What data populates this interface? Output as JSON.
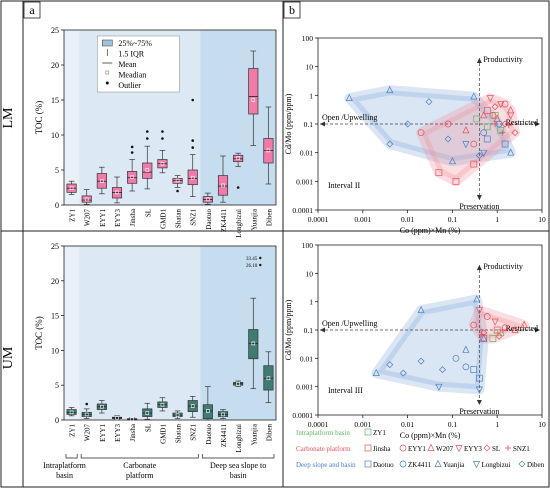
{
  "panels": {
    "a": "a",
    "b": "b"
  },
  "rows": {
    "lm": "LM",
    "um": "UM"
  },
  "chart_data": [
    {
      "id": "box-lm",
      "type": "box",
      "ylabel": "TOC (%)",
      "ylim": [
        0,
        25
      ],
      "yticks": [
        0,
        5,
        10,
        15,
        20,
        25
      ],
      "categories": [
        "ZY1",
        "W207",
        "EYY1",
        "EYY3",
        "Jinsha",
        "SL",
        "GMD1",
        "Shatan",
        "SNZ1",
        "Daotuo",
        "ZK4411",
        "Longbizui",
        "Yuanjia",
        "Diben"
      ],
      "legend": [
        "25%~75%",
        "1.5 IQR",
        "Mean",
        "Meadian",
        "Outlier"
      ],
      "boxes": [
        {
          "q1": 1.8,
          "median": 2.4,
          "q3": 3.0,
          "lo": 1.5,
          "hi": 3.4,
          "mean": 2.4,
          "outliers": []
        },
        {
          "q1": 0.4,
          "median": 0.7,
          "q3": 1.3,
          "lo": 0.1,
          "hi": 2.2,
          "mean": 0.8,
          "outliers": []
        },
        {
          "q1": 2.4,
          "median": 3.4,
          "q3": 4.5,
          "lo": 1.6,
          "hi": 5.4,
          "mean": 3.4,
          "outliers": []
        },
        {
          "q1": 1.0,
          "median": 1.8,
          "q3": 2.5,
          "lo": 0.3,
          "hi": 4.0,
          "mean": 1.8,
          "outliers": []
        },
        {
          "q1": 3.1,
          "median": 3.9,
          "q3": 4.8,
          "lo": 2.0,
          "hi": 6.5,
          "mean": 4.0,
          "outliers": [
            7.5,
            8.3
          ]
        },
        {
          "q1": 3.8,
          "median": 4.7,
          "q3": 6.0,
          "lo": 2.3,
          "hi": 8.4,
          "mean": 5.0,
          "outliers": [
            9.5,
            10.5
          ]
        },
        {
          "q1": 5.3,
          "median": 5.9,
          "q3": 6.5,
          "lo": 4.6,
          "hi": 7.8,
          "mean": 5.9,
          "outliers": [
            9.5,
            10.5
          ]
        },
        {
          "q1": 3.1,
          "median": 3.5,
          "q3": 3.8,
          "lo": 2.5,
          "hi": 4.2,
          "mean": 3.5,
          "outliers": [
            2.0
          ]
        },
        {
          "q1": 2.9,
          "median": 3.8,
          "q3": 5.0,
          "lo": 1.2,
          "hi": 7.2,
          "mean": 3.9,
          "outliers": [
            8.2,
            9.2,
            15.0
          ]
        },
        {
          "q1": 0.4,
          "median": 0.8,
          "q3": 1.2,
          "lo": 0.1,
          "hi": 1.7,
          "mean": 0.8,
          "outliers": []
        },
        {
          "q1": 1.4,
          "median": 2.7,
          "q3": 4.2,
          "lo": 0.4,
          "hi": 7.0,
          "mean": 2.8,
          "outliers": []
        },
        {
          "q1": 6.2,
          "median": 6.6,
          "q3": 7.1,
          "lo": 5.5,
          "hi": 7.4,
          "mean": 6.7,
          "outliers": [
            2.5
          ]
        },
        {
          "q1": 13.0,
          "median": 15.5,
          "q3": 19.5,
          "lo": 8.5,
          "hi": 22.0,
          "mean": 15.0,
          "outliers": []
        },
        {
          "q1": 6.0,
          "median": 7.8,
          "q3": 9.5,
          "lo": 3.0,
          "hi": 14.0,
          "mean": 7.8,
          "outliers": []
        }
      ]
    },
    {
      "id": "box-um",
      "type": "box",
      "ylabel": "TOC (%)",
      "ylim": [
        0,
        25
      ],
      "yticks": [
        0,
        5,
        10,
        15,
        20,
        25
      ],
      "categories": [
        "ZY1",
        "W207",
        "EYY1",
        "EYY3",
        "Jinsha",
        "SL",
        "GMD1",
        "Shatan",
        "SNZ1",
        "Daotuo",
        "ZK4411",
        "Longbizui",
        "Yuanjia",
        "Diben"
      ],
      "annotation": [
        "33.45",
        "26.10"
      ],
      "groups": [
        "Intraplatform\nbasin",
        "Carbonate\nplatform",
        "Deep sea slope to\nbasin"
      ],
      "boxes": [
        {
          "q1": 0.8,
          "median": 1.1,
          "q3": 1.5,
          "lo": 0.6,
          "hi": 1.8,
          "mean": 1.1,
          "outliers": []
        },
        {
          "q1": 0.5,
          "median": 0.8,
          "q3": 1.1,
          "lo": 0.2,
          "hi": 1.6,
          "mean": 0.8,
          "outliers": [
            2.3
          ]
        },
        {
          "q1": 1.5,
          "median": 1.9,
          "q3": 2.3,
          "lo": 1.0,
          "hi": 2.8,
          "mean": 1.9,
          "outliers": []
        },
        {
          "q1": 0.2,
          "median": 0.3,
          "q3": 0.4,
          "lo": 0.1,
          "hi": 0.6,
          "mean": 0.3,
          "outliers": []
        },
        {
          "q1": 0.0,
          "median": 0.1,
          "q3": 0.2,
          "lo": 0.0,
          "hi": 0.3,
          "mean": 0.1,
          "outliers": []
        },
        {
          "q1": 0.5,
          "median": 1.0,
          "q3": 1.6,
          "lo": 0.1,
          "hi": 2.4,
          "mean": 1.0,
          "outliers": []
        },
        {
          "q1": 1.8,
          "median": 2.2,
          "q3": 2.6,
          "lo": 1.3,
          "hi": 3.2,
          "mean": 2.2,
          "outliers": []
        },
        {
          "q1": 0.5,
          "median": 0.7,
          "q3": 1.0,
          "lo": 0.2,
          "hi": 1.3,
          "mean": 0.7,
          "outliers": []
        },
        {
          "q1": 1.2,
          "median": 2.0,
          "q3": 2.8,
          "lo": 0.4,
          "hi": 3.4,
          "mean": 2.0,
          "outliers": []
        },
        {
          "q1": 0.2,
          "median": 1.3,
          "q3": 2.2,
          "lo": 0.0,
          "hi": 4.8,
          "mean": 1.3,
          "outliers": []
        },
        {
          "q1": 0.5,
          "median": 0.8,
          "q3": 1.2,
          "lo": 0.2,
          "hi": 1.5,
          "mean": 0.8,
          "outliers": []
        },
        {
          "q1": 5.0,
          "median": 5.2,
          "q3": 5.4,
          "lo": 4.8,
          "hi": 5.6,
          "mean": 5.2,
          "outliers": []
        },
        {
          "q1": 8.8,
          "median": 11.0,
          "q3": 13.0,
          "lo": 4.5,
          "hi": 17.5,
          "mean": 11.0,
          "outliers": []
        },
        {
          "q1": 4.3,
          "median": 6.0,
          "q3": 7.8,
          "lo": 2.5,
          "hi": 9.8,
          "mean": 6.0,
          "outliers": []
        }
      ]
    },
    {
      "id": "scatter-lm",
      "type": "scatter",
      "xlabel": "Co (ppm)×Mn (%)",
      "ylabel": "Cd/Mo (ppm/ppm)",
      "xscale": "log",
      "yscale": "log",
      "xlim": [
        0.0001,
        10
      ],
      "ylim": [
        0.0001,
        100
      ],
      "xticks": [
        "0.0001",
        "0.001",
        "0.01",
        "0.1",
        "1",
        "10"
      ],
      "yticks": [
        "0.0001",
        "0.001",
        "0.01",
        "0.1",
        "1",
        "10",
        "100"
      ],
      "arrow_labels": [
        "Productivity",
        "Open /Upwelling",
        "Restricted",
        "Preservation"
      ],
      "interval": "Interval II",
      "threshold": {
        "x": 0.4,
        "y": 0.1
      },
      "series": [
        {
          "name": "ZY1",
          "color": "#5cb85c",
          "marker": "square",
          "points": [
            [
              0.35,
              0.15
            ],
            [
              0.6,
              0.08
            ],
            [
              0.9,
              0.2
            ],
            [
              1.2,
              0.06
            ]
          ]
        },
        {
          "name": "Jinsha",
          "color": "#e8505b",
          "marker": "square",
          "points": [
            [
              0.05,
              0.002
            ],
            [
              0.12,
              0.001
            ],
            [
              0.3,
              0.004
            ],
            [
              0.6,
              0.3
            ]
          ]
        },
        {
          "name": "EYY1",
          "color": "#e8505b",
          "marker": "circle",
          "points": [
            [
              0.02,
              0.05
            ],
            [
              0.08,
              0.1
            ],
            [
              0.3,
              0.02
            ],
            [
              0.8,
              0.2
            ],
            [
              1.5,
              0.5
            ]
          ]
        },
        {
          "name": "W207",
          "color": "#e8505b",
          "marker": "triangle",
          "points": [
            [
              0.2,
              0.06
            ],
            [
              0.5,
              0.2
            ],
            [
              1.0,
              0.15
            ],
            [
              2.0,
              0.3
            ]
          ]
        },
        {
          "name": "EYY3",
          "color": "#e8505b",
          "marker": "triangle-down",
          "points": [
            [
              0.7,
              0.8
            ],
            [
              1.2,
              0.5
            ],
            [
              2.0,
              0.2
            ]
          ]
        },
        {
          "name": "SL",
          "color": "#e8505b",
          "marker": "diamond",
          "points": [
            [
              0.9,
              0.4
            ],
            [
              1.5,
              0.1
            ],
            [
              2.5,
              0.05
            ]
          ]
        },
        {
          "name": "SNZ1",
          "color": "#e8505b",
          "marker": "plus",
          "points": [
            [
              0.9,
              0.1
            ],
            [
              1.3,
              0.05
            ],
            [
              1.8,
              0.09
            ]
          ]
        },
        {
          "name": "Daotuo",
          "color": "#4a7ec8",
          "marker": "square",
          "points": [
            [
              0.6,
              0.03
            ],
            [
              1.5,
              0.02
            ]
          ]
        },
        {
          "name": "ZK4411",
          "color": "#4a7ec8",
          "marker": "circle",
          "points": [
            [
              0.5,
              0.05
            ],
            [
              1.1,
              0.1
            ]
          ]
        },
        {
          "name": "Yuanjia",
          "color": "#4a7ec8",
          "marker": "triangle",
          "points": [
            [
              0.0005,
              0.8
            ],
            [
              0.004,
              1.5
            ],
            [
              0.1,
              0.005
            ],
            [
              0.3,
              0.9
            ],
            [
              2.0,
              0.01
            ]
          ]
        },
        {
          "name": "Longbizui",
          "color": "#4a7ec8",
          "marker": "triangle-down",
          "points": [
            [
              0.2,
              0.02
            ],
            [
              0.5,
              0.01
            ]
          ]
        },
        {
          "name": "Diben",
          "color": "#4a7ec8",
          "marker": "diamond",
          "points": [
            [
              0.004,
              0.02
            ],
            [
              0.01,
              0.1
            ],
            [
              0.03,
              0.6
            ],
            [
              0.08,
              0.03
            ],
            [
              0.4,
              0.008
            ]
          ]
        }
      ]
    },
    {
      "id": "scatter-um",
      "type": "scatter",
      "xlabel": "Co (ppm)×Mn (%)",
      "ylabel": "Cd/Mo (ppm/ppm)",
      "xscale": "log",
      "yscale": "log",
      "xlim": [
        0.0001,
        10
      ],
      "ylim": [
        0.0001,
        100
      ],
      "xticks": [
        "0.0001",
        "0.001",
        "0.01",
        "0.1",
        "1",
        "10"
      ],
      "yticks": [
        "0.0001",
        "0.001",
        "0.01",
        "0.1",
        "1",
        "10",
        "100"
      ],
      "arrow_labels": [
        "Productivity",
        "Open /Upwelling",
        "Restricted",
        "Preservation"
      ],
      "interval": "Interval III",
      "threshold": {
        "x": 0.4,
        "y": 0.1
      },
      "series": [
        {
          "name": "ZY1",
          "color": "#5cb85c",
          "marker": "square",
          "points": [
            [
              0.8,
              0.05
            ],
            [
              1.2,
              0.08
            ]
          ]
        },
        {
          "name": "Jinsha",
          "color": "#e8505b",
          "marker": "square",
          "points": [
            [
              0.5,
              0.05
            ],
            [
              1.0,
              0.1
            ]
          ]
        },
        {
          "name": "EYY1",
          "color": "#e8505b",
          "marker": "circle",
          "points": [
            [
              0.3,
              0.15
            ],
            [
              0.6,
              0.3
            ],
            [
              1.5,
              0.12
            ]
          ]
        },
        {
          "name": "W207",
          "color": "#e8505b",
          "marker": "triangle",
          "points": [
            [
              2.5,
              0.1
            ],
            [
              4.0,
              0.15
            ]
          ]
        },
        {
          "name": "EYY3",
          "color": "#e8505b",
          "marker": "triangle-down",
          "points": [
            [
              0.4,
              0.5
            ],
            [
              0.9,
              0.2
            ]
          ]
        },
        {
          "name": "SL",
          "color": "#e8505b",
          "marker": "diamond",
          "points": [
            [
              0.5,
              0.08
            ],
            [
              1.1,
              0.06
            ]
          ]
        },
        {
          "name": "SNZ1",
          "color": "#e8505b",
          "marker": "plus",
          "points": [
            [
              0.45,
              0.07
            ],
            [
              1.3,
              0.1
            ]
          ]
        },
        {
          "name": "Daotuo",
          "color": "#4a7ec8",
          "marker": "square",
          "points": [
            [
              0.3,
              0.004
            ],
            [
              0.4,
              0.002
            ]
          ]
        },
        {
          "name": "ZK4411",
          "color": "#4a7ec8",
          "marker": "circle",
          "points": [
            [
              0.12,
              0.01
            ],
            [
              0.2,
              0.005
            ]
          ]
        },
        {
          "name": "Yuanjia",
          "color": "#4a7ec8",
          "marker": "triangle",
          "points": [
            [
              0.002,
              0.003
            ],
            [
              0.02,
              0.5
            ],
            [
              0.2,
              0.02
            ],
            [
              0.35,
              1.2
            ],
            [
              0.5,
              0.05
            ]
          ]
        },
        {
          "name": "Longbizui",
          "color": "#4a7ec8",
          "marker": "triangle-down",
          "points": [
            [
              0.05,
              0.001
            ],
            [
              0.4,
              0.0008
            ]
          ]
        },
        {
          "name": "Diben",
          "color": "#4a7ec8",
          "marker": "diamond",
          "points": [
            [
              0.004,
              0.006
            ],
            [
              0.008,
              0.003
            ],
            [
              0.02,
              0.008
            ],
            [
              0.06,
              0.004
            ]
          ]
        }
      ]
    }
  ],
  "legend_b": {
    "intraplatform": {
      "title": "Intraplatform basin",
      "items": [
        "ZY1"
      ]
    },
    "carbonate": {
      "title": "Carbonate platform",
      "items": [
        "Jinsha",
        "EYY1",
        "W207",
        "EYY3",
        "SL",
        "SNZ1"
      ]
    },
    "deep": {
      "title": "Deep slope and basin",
      "items": [
        "Daotuo",
        "ZK4411",
        "Yuanjia",
        "Longbizui",
        "Diben"
      ]
    }
  },
  "colors": {
    "lm_box": "#f07aa8",
    "um_box": "#3f7b72",
    "intra": "#5cb85c",
    "carb": "#e8505b",
    "deep": "#4a7ec8"
  }
}
